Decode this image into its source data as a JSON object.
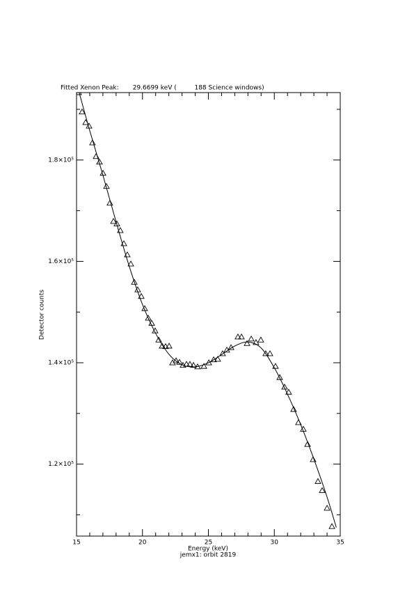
{
  "chart_data": {
    "type": "scatter",
    "title": "Fitted Xenon Peak:       29.6699 keV (         188 Science windows)",
    "xlabel": "Energy (keV)",
    "ylabel": "Detector counts",
    "subtitle": "jemx1: orbit 2819",
    "xlim": [
      15,
      35
    ],
    "ylim": [
      105800,
      193300
    ],
    "xticks": [
      15,
      20,
      25,
      30,
      35
    ],
    "xminorticks": [
      16,
      17,
      18,
      19,
      21,
      22,
      23,
      24,
      26,
      27,
      28,
      29,
      31,
      32,
      33,
      34
    ],
    "yticks": [
      {
        "value": 120000,
        "label": "1.2×10⁵"
      },
      {
        "value": 140000,
        "label": "1.4×10⁵"
      },
      {
        "value": 160000,
        "label": "1.6×10⁵"
      },
      {
        "value": 180000,
        "label": "1.8×10⁵"
      }
    ],
    "yminorticks": [
      110000,
      130000,
      150000,
      170000,
      190000
    ],
    "color": "#000000",
    "series": [
      {
        "marker": "triangle",
        "x": [
          15.16,
          15.42,
          15.69,
          15.95,
          16.21,
          16.48,
          16.74,
          17.01,
          17.27,
          17.53,
          17.8,
          18.06,
          18.32,
          18.59,
          18.85,
          19.12,
          19.38,
          19.64,
          19.91,
          20.17,
          20.44,
          20.7,
          20.96,
          21.23,
          21.49,
          21.75,
          22.02,
          22.28,
          22.55,
          22.81,
          23.07,
          23.34,
          23.6,
          23.87,
          24.18,
          24.66,
          25.03,
          25.4,
          25.71,
          26.08,
          26.4,
          26.72,
          27.24,
          27.51,
          27.93,
          28.25,
          28.61,
          28.98,
          29.35,
          29.67,
          30.09,
          30.41,
          30.78,
          31.09,
          31.46,
          31.83,
          32.2,
          32.52,
          32.94,
          33.31,
          33.63,
          34.0,
          34.37
        ],
        "values": [
          193300,
          189500,
          187400,
          186700,
          183400,
          180700,
          179600,
          177400,
          174800,
          171500,
          167900,
          167400,
          166100,
          163500,
          161300,
          159500,
          155900,
          154400,
          153100,
          150700,
          148800,
          147800,
          146300,
          144500,
          143300,
          143200,
          143300,
          140000,
          140400,
          140100,
          139500,
          139700,
          139700,
          139500,
          139200,
          139300,
          140000,
          140600,
          140700,
          141800,
          142500,
          143000,
          145100,
          145100,
          143800,
          144700,
          144000,
          144500,
          141800,
          141800,
          139300,
          137100,
          135200,
          134200,
          130800,
          128200,
          126900,
          123900,
          120900,
          116600,
          114800,
          111300,
          107700
        ]
      },
      {
        "marker": "line",
        "x": [
          15.2,
          16,
          17,
          18,
          19,
          20,
          21,
          22,
          23,
          24,
          25,
          26,
          27,
          28,
          29,
          30,
          31,
          32,
          33,
          34,
          34.7
        ],
        "values": [
          193300,
          185800,
          177000,
          167800,
          159000,
          151500,
          145800,
          141700,
          139600,
          139200,
          140000,
          141600,
          143300,
          144100,
          142900,
          139000,
          133800,
          127800,
          121000,
          113500,
          107500
        ]
      }
    ]
  }
}
